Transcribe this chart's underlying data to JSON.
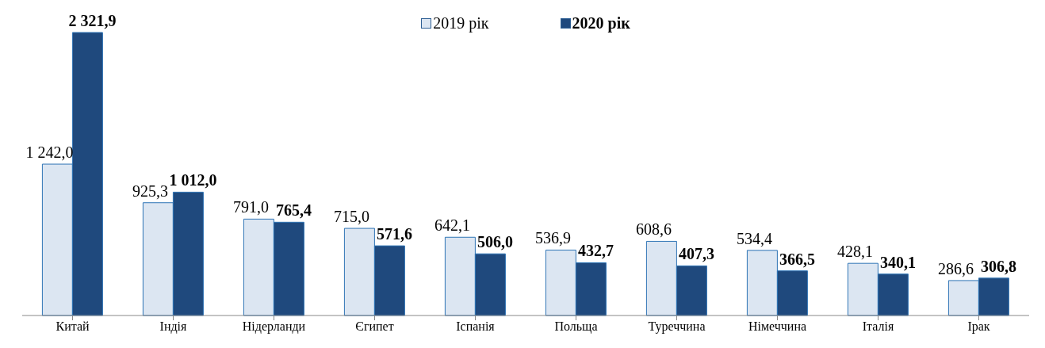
{
  "chart_data": {
    "type": "bar",
    "categories": [
      "Китай",
      "Індія",
      "Нідерланди",
      "Єгипет",
      "Іспанія",
      "Польща",
      "Туреччина",
      "Німеччина",
      "Італія",
      "Ірак"
    ],
    "series": [
      {
        "name": "2019 рік",
        "color": "#dce6f2",
        "values": [
          1242.0,
          925.3,
          791.0,
          715.0,
          642.1,
          536.9,
          608.6,
          534.4,
          428.1,
          286.6
        ],
        "value_labels": [
          "1 242,0",
          "925,3",
          "791,0",
          "715,0",
          "642,1",
          "536,9",
          "608,6",
          "534,4",
          "428,1",
          "286,6"
        ]
      },
      {
        "name": "2020 рік",
        "color": "#1f497d",
        "values": [
          2321.9,
          1012.0,
          765.4,
          571.6,
          506.0,
          432.7,
          407.3,
          366.5,
          340.1,
          306.8
        ],
        "value_labels": [
          "2 321,9",
          "1 012,0",
          "765,4",
          "571,6",
          "506,0",
          "432,7",
          "407,3",
          "366,5",
          "340,1",
          "306,8"
        ]
      }
    ],
    "legend": "top"
  }
}
